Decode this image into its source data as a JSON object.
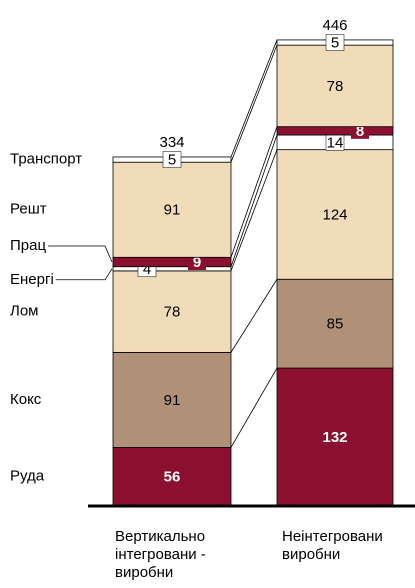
{
  "chart_data": {
    "type": "bar",
    "stacked": true,
    "categories": [
      "Вертикально інтегровани - виробни",
      "Неінтегровани виробни"
    ],
    "series": [
      {
        "name": "Руда",
        "color": "#8b0f2e",
        "values": [
          56,
          132
        ]
      },
      {
        "name": "Кокс",
        "color": "#b09077",
        "values": [
          91,
          85
        ]
      },
      {
        "name": "Лом",
        "color": "#f1dcb9",
        "values": [
          78,
          124
        ]
      },
      {
        "name": "Енергі",
        "color": "#ffffff",
        "values": [
          4,
          14
        ]
      },
      {
        "name": "Прац",
        "color": "#8b0f2e",
        "values": [
          9,
          8
        ]
      },
      {
        "name": "Решт",
        "color": "#f1dcb9",
        "values": [
          91,
          78
        ]
      },
      {
        "name": "Транспорт",
        "color": "#ffffff",
        "values": [
          5,
          5
        ]
      }
    ],
    "totals": [
      334,
      446
    ]
  }
}
